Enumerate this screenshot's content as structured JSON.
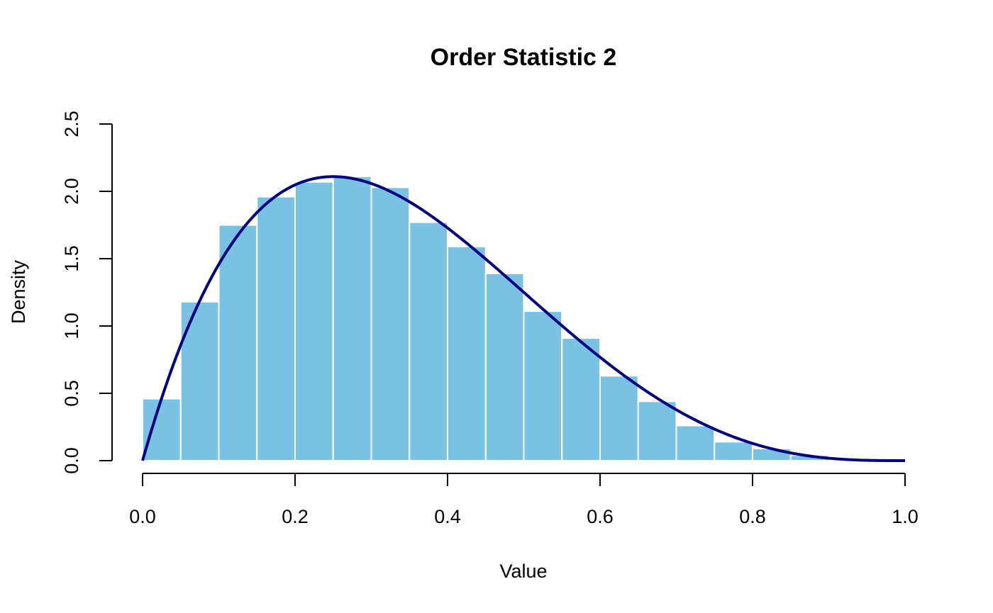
{
  "chart_data": {
    "type": "histogram",
    "title": "Order Statistic 2",
    "xlabel": "Value",
    "ylabel": "Density",
    "xlim": [
      0.0,
      1.0
    ],
    "ylim": [
      0.0,
      2.5
    ],
    "x_ticks": [
      "0.0",
      "0.2",
      "0.4",
      "0.6",
      "0.8",
      "1.0"
    ],
    "y_ticks": [
      "0.0",
      "0.5",
      "1.0",
      "1.5",
      "2.0",
      "2.5"
    ],
    "bin_edges": [
      0.0,
      0.05,
      0.1,
      0.15,
      0.2,
      0.25,
      0.3,
      0.35,
      0.4,
      0.45,
      0.5,
      0.55,
      0.6,
      0.65,
      0.7,
      0.75,
      0.8,
      0.85,
      0.9,
      0.95,
      1.0
    ],
    "densities": [
      0.46,
      1.18,
      1.75,
      1.96,
      2.07,
      2.11,
      2.03,
      1.77,
      1.59,
      1.39,
      1.11,
      0.91,
      0.63,
      0.44,
      0.26,
      0.14,
      0.09,
      0.04,
      0.0,
      0.0
    ],
    "grid": false,
    "colors": {
      "bars": "#7AC2E4",
      "bar_border": "#ffffff",
      "curve": "#00007F",
      "axis": "#000000"
    },
    "curve": {
      "formula": "Beta(2,4) density: 20 * x * (1 - x)^3"
    }
  }
}
